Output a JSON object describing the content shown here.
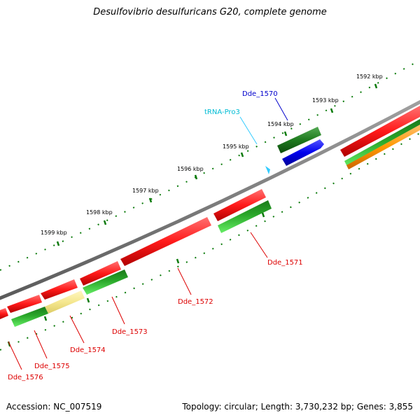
{
  "title": "Desulfovibrio desulfuricans G20, complete genome",
  "footer": {
    "accession": "Accession: NC_007519",
    "topology": "Topology: circular; Length: 3,730,232 bp; Genes: 3,855"
  },
  "colors": {
    "backbone": "#808080",
    "label_dark_blue": "#0000cc",
    "label_cyan": "#00bcd4",
    "label_red": "#dd0000",
    "tick_green": "#007700"
  },
  "scale_labels": [
    "1592 kbp",
    "1593 kbp",
    "1594 kbp",
    "1595 kbp",
    "1596 kbp",
    "1597 kbp",
    "1598 kbp",
    "1599 kbp"
  ],
  "gene_labels": [
    {
      "id": "dde1570",
      "text": "Dde_1570",
      "color": "#0000cc"
    },
    {
      "id": "trna",
      "text": "tRNA-Pro3",
      "color": "#00bcd4"
    },
    {
      "id": "dde1571",
      "text": "Dde_1571",
      "color": "#dd0000"
    },
    {
      "id": "dde1572",
      "text": "Dde_1572",
      "color": "#dd0000"
    },
    {
      "id": "dde1573",
      "text": "Dde_1573",
      "color": "#dd0000"
    },
    {
      "id": "dde1574",
      "text": "Dde_1574",
      "color": "#dd0000"
    },
    {
      "id": "dde1575",
      "text": "Dde_1575",
      "color": "#dd0000"
    },
    {
      "id": "dde1576",
      "text": "Dde_1576",
      "color": "#dd0000"
    }
  ]
}
